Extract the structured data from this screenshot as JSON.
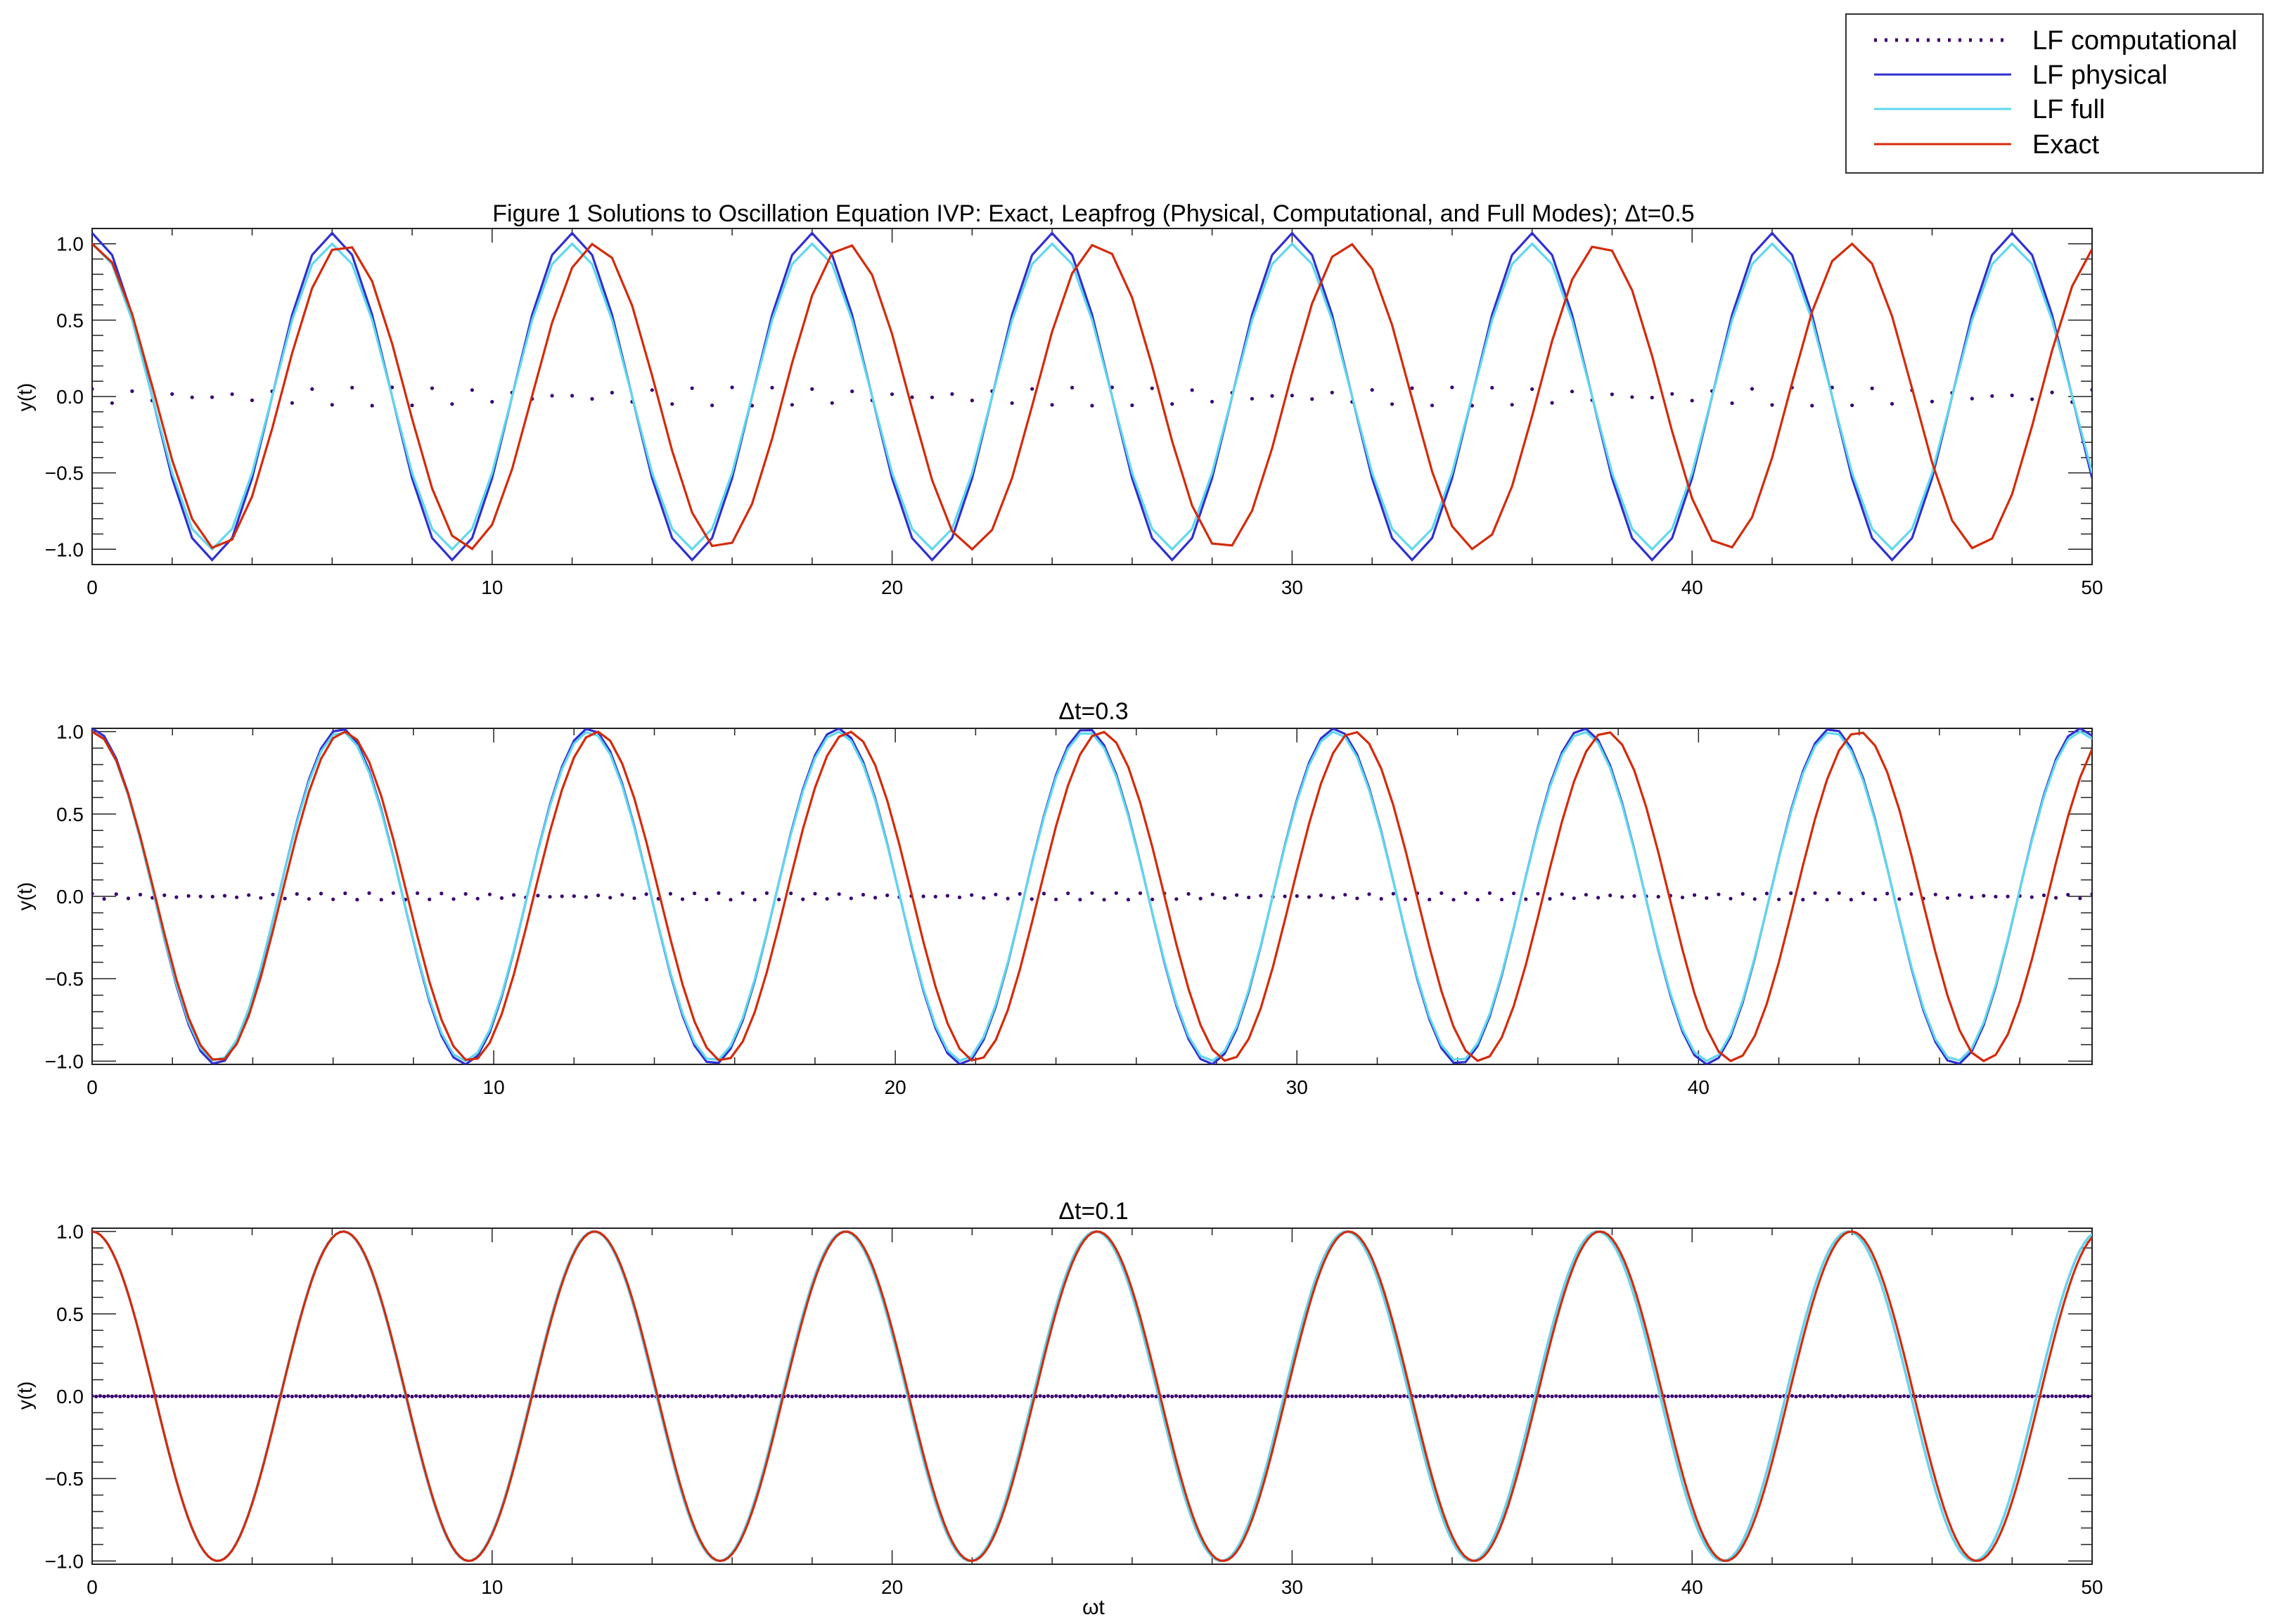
{
  "legend": {
    "entries": [
      {
        "label": "LF computational",
        "color": "#3a0070",
        "style": "dotted"
      },
      {
        "label": "LF physical",
        "color": "#2f2fd2",
        "style": "solid"
      },
      {
        "label": "LF full",
        "color": "#5fd8ee",
        "style": "solid"
      },
      {
        "label": "Exact",
        "color": "#d42a0a",
        "style": "solid"
      }
    ]
  },
  "chart_data": [
    {
      "type": "line",
      "title": "Figure 1 Solutions to Oscillation Equation IVP: Exact, Leapfrog (Physical, Computational, and Full Modes);  Δt=0.5",
      "xlabel": "",
      "ylabel": "y(t)",
      "xlim": [
        0,
        50
      ],
      "ylim": [
        -1.1,
        1.1
      ],
      "xticks": [
        "0",
        "10",
        "20",
        "30",
        "40",
        "50"
      ],
      "yticks": [
        "1.0",
        "0.5",
        "0.0",
        "−0.5",
        "−1.0"
      ],
      "dt": 0.5,
      "series": [
        {
          "name": "LF computational",
          "formula": "±0.06 alternating, decaying beat",
          "amplitude": 0.06
        },
        {
          "name": "LF physical",
          "frequency": 1.0472,
          "amplitude": 1.07
        },
        {
          "name": "LF full",
          "frequency": 1.0472,
          "amplitude": 1.0
        },
        {
          "name": "Exact",
          "frequency": 1.0,
          "amplitude": 1.0
        }
      ]
    },
    {
      "type": "line",
      "title": "Δt=0.3",
      "xlabel": "",
      "ylabel": "y(t)",
      "xlim": [
        0,
        49.8
      ],
      "ylim": [
        -1.02,
        1.02
      ],
      "xticks": [
        "0",
        "10",
        "20",
        "30",
        "40"
      ],
      "yticks": [
        "1.0",
        "0.5",
        "0.0",
        "−0.5",
        "−1.0"
      ],
      "dt": 0.3,
      "series": [
        {
          "name": "LF computational",
          "amplitude": 0.02
        },
        {
          "name": "LF physical",
          "frequency": 1.0153,
          "amplitude": 1.02
        },
        {
          "name": "LF full",
          "frequency": 1.0153,
          "amplitude": 1.0
        },
        {
          "name": "Exact",
          "frequency": 1.0,
          "amplitude": 1.0
        }
      ]
    },
    {
      "type": "line",
      "title": "Δt=0.1",
      "xlabel": "ωt",
      "ylabel": "y(t)",
      "xlim": [
        0,
        50
      ],
      "ylim": [
        -1.02,
        1.02
      ],
      "xticks": [
        "0",
        "10",
        "20",
        "30",
        "40",
        "50"
      ],
      "yticks": [
        "1.0",
        "0.5",
        "0.0",
        "−0.5",
        "−1.0"
      ],
      "dt": 0.1,
      "series": [
        {
          "name": "LF computational",
          "amplitude": 0.002
        },
        {
          "name": "LF physical",
          "frequency": 1.0017,
          "amplitude": 1.0
        },
        {
          "name": "LF full",
          "frequency": 1.0017,
          "amplitude": 1.0
        },
        {
          "name": "Exact",
          "frequency": 1.0,
          "amplitude": 1.0
        }
      ]
    }
  ]
}
